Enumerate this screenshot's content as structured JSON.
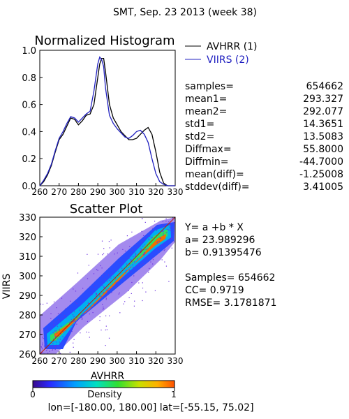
{
  "header": {
    "title": "SMT,  Sep. 23 2013 (week 38)"
  },
  "footer": {
    "region": "lon=[-180.00, 180.00] lat=[-55.15, 75.02]"
  },
  "chart_data": [
    {
      "type": "line",
      "title": "Normalized Histogram",
      "xlim": [
        260,
        330
      ],
      "ylim": [
        0,
        1
      ],
      "x_ticks": [
        "260",
        "270",
        "280",
        "290",
        "300",
        "310",
        "320",
        "330"
      ],
      "y_ticks": [
        "0.0",
        "0.2",
        "0.4",
        "0.6",
        "0.8",
        "1.0"
      ],
      "x": [
        260,
        262,
        264,
        266,
        268,
        270,
        272,
        274,
        276,
        278,
        280,
        282,
        284,
        286,
        288,
        290,
        291,
        292,
        293,
        294,
        296,
        298,
        300,
        302,
        304,
        306,
        308,
        310,
        312,
        314,
        316,
        318,
        320,
        322,
        324,
        326,
        328,
        330
      ],
      "series": [
        {
          "name": "AVHRR (1)",
          "color": "#000000",
          "values": [
            0.0,
            0.03,
            0.08,
            0.15,
            0.25,
            0.34,
            0.38,
            0.44,
            0.5,
            0.49,
            0.45,
            0.48,
            0.52,
            0.53,
            0.6,
            0.8,
            0.9,
            0.94,
            0.94,
            0.84,
            0.6,
            0.5,
            0.45,
            0.4,
            0.37,
            0.34,
            0.34,
            0.35,
            0.38,
            0.41,
            0.43,
            0.38,
            0.25,
            0.1,
            0.02,
            0.0,
            0.0,
            0.0
          ]
        },
        {
          "name": "VIIRS (2)",
          "color": "#2020c0",
          "values": [
            0.0,
            0.04,
            0.09,
            0.16,
            0.26,
            0.35,
            0.4,
            0.46,
            0.51,
            0.5,
            0.47,
            0.5,
            0.53,
            0.55,
            0.7,
            0.9,
            0.95,
            0.93,
            0.88,
            0.72,
            0.52,
            0.46,
            0.42,
            0.39,
            0.36,
            0.35,
            0.37,
            0.4,
            0.41,
            0.38,
            0.32,
            0.2,
            0.09,
            0.03,
            0.01,
            0.0,
            0.0,
            0.0
          ]
        }
      ]
    },
    {
      "type": "scatter",
      "title": "Scatter Plot",
      "xlabel": "AVHRR",
      "ylabel": "VIIRS",
      "xlim": [
        260,
        330
      ],
      "ylim": [
        260,
        330
      ],
      "x_ticks": [
        "260",
        "270",
        "280",
        "290",
        "300",
        "310",
        "320",
        "330"
      ],
      "y_ticks": [
        "260",
        "270",
        "280",
        "290",
        "300",
        "310",
        "320",
        "330"
      ],
      "colorbar": {
        "label": "Density",
        "min_label": "0",
        "max_label": "1"
      },
      "fit": {
        "a": 23.989296,
        "b": 0.91395476
      }
    }
  ],
  "stats": {
    "rows": [
      {
        "label": "samples=",
        "value": "654662"
      },
      {
        "label": "mean1=",
        "value": "293.327"
      },
      {
        "label": "mean2=",
        "value": "292.077"
      },
      {
        "label": "std1=",
        "value": "14.3651"
      },
      {
        "label": "std2=",
        "value": "13.5083"
      },
      {
        "label": "Diffmax=",
        "value": "55.8000"
      },
      {
        "label": "Diffmin=",
        "value": "-44.7000"
      },
      {
        "label": "mean(diff)=",
        "value": "-1.25008"
      },
      {
        "label": "stddev(diff)=",
        "value": "3.41005"
      }
    ]
  },
  "regression": {
    "equation": "Y= a +b * X",
    "a_text": "a= 23.989296",
    "b_text": "b= 0.91395476",
    "samples_text": "Samples= 654662",
    "cc_text": "CC=  0.9719",
    "rmse_text": "RMSE= 3.1781871"
  }
}
